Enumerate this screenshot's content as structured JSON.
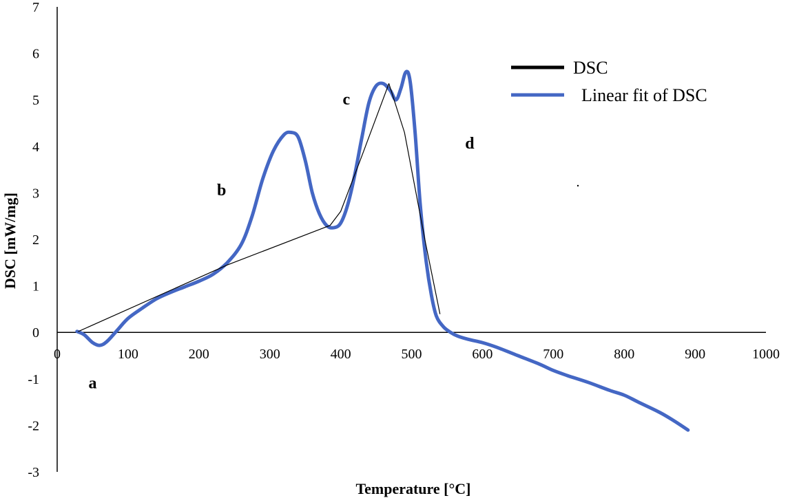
{
  "chart_data": {
    "type": "line",
    "title": "",
    "xlabel": "Temperature  [°C]",
    "ylabel": "DSC [mW/mg]",
    "xlim": [
      0,
      1000
    ],
    "ylim": [
      -3,
      7
    ],
    "xticks": [
      0,
      100,
      200,
      300,
      400,
      500,
      600,
      700,
      800,
      900,
      1000
    ],
    "yticks": [
      7,
      6,
      5,
      4,
      3,
      2,
      1,
      0,
      -1,
      -2,
      -3
    ],
    "grid": false,
    "legend_position": "top-right",
    "series": [
      {
        "name": "DSC",
        "color": "#000000",
        "x": [
          30,
          240,
          385,
          400,
          430,
          468,
          490,
          520,
          540
        ],
        "y": [
          0.02,
          1.45,
          2.3,
          2.6,
          3.8,
          5.35,
          4.3,
          1.9,
          0.4
        ]
      },
      {
        "name": "Linear fit of DSC",
        "color": "#4467C4",
        "x": [
          28,
          38,
          50,
          60,
          70,
          85,
          100,
          120,
          140,
          160,
          180,
          200,
          220,
          240,
          260,
          275,
          290,
          305,
          320,
          330,
          340,
          350,
          360,
          370,
          380,
          390,
          400,
          410,
          420,
          430,
          440,
          450,
          460,
          470,
          478,
          485,
          492,
          498,
          505,
          512,
          520,
          528,
          535,
          545,
          555,
          565,
          580,
          600,
          620,
          650,
          680,
          700,
          720,
          750,
          780,
          800,
          820,
          850,
          870,
          890
        ],
        "y": [
          0.02,
          -0.05,
          -0.22,
          -0.28,
          -0.2,
          0.05,
          0.3,
          0.52,
          0.72,
          0.86,
          0.98,
          1.1,
          1.25,
          1.5,
          1.9,
          2.5,
          3.3,
          3.9,
          4.25,
          4.3,
          4.2,
          3.7,
          3.0,
          2.55,
          2.3,
          2.25,
          2.35,
          2.75,
          3.4,
          4.2,
          4.95,
          5.3,
          5.35,
          5.2,
          5.0,
          5.25,
          5.6,
          5.4,
          4.3,
          2.8,
          1.6,
          0.8,
          0.35,
          0.12,
          0.0,
          -0.08,
          -0.15,
          -0.22,
          -0.32,
          -0.5,
          -0.68,
          -0.82,
          -0.93,
          -1.08,
          -1.25,
          -1.35,
          -1.5,
          -1.72,
          -1.9,
          -2.1
        ]
      }
    ],
    "annotations": [
      {
        "text": "a",
        "x": 50,
        "y": -1.2
      },
      {
        "text": "b",
        "x": 232,
        "y": 2.95
      },
      {
        "text": "c",
        "x": 408,
        "y": 4.9
      },
      {
        "text": "d",
        "x": 582,
        "y": 3.95
      }
    ]
  }
}
